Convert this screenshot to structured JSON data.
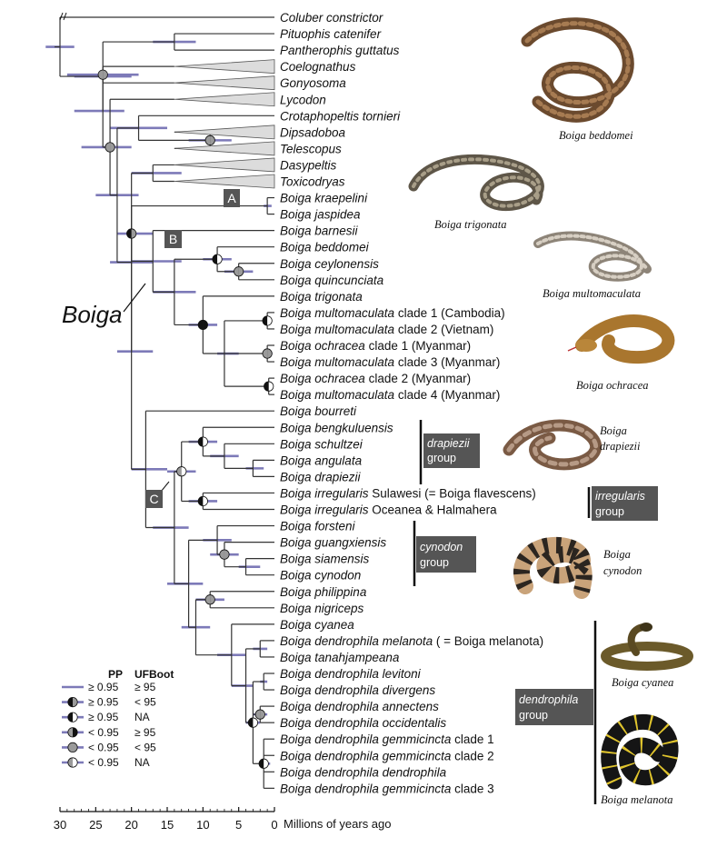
{
  "taxa": [
    {
      "genus": "Coluber",
      "rest": " constrictor",
      "plain": ""
    },
    {
      "genus": "Pituophis",
      "rest": " catenifer",
      "plain": ""
    },
    {
      "genus": "Pantherophis",
      "rest": " guttatus",
      "plain": ""
    },
    {
      "genus": "Coelognathus",
      "rest": "",
      "plain": ""
    },
    {
      "genus": "Gonyosoma",
      "rest": "",
      "plain": ""
    },
    {
      "genus": "Lycodon",
      "rest": "",
      "plain": ""
    },
    {
      "genus": "Crotaphopeltis",
      "rest": " tornieri",
      "plain": ""
    },
    {
      "genus": "Dipsadoboa",
      "rest": "",
      "plain": ""
    },
    {
      "genus": "Telescopus",
      "rest": "",
      "plain": ""
    },
    {
      "genus": "Dasypeltis",
      "rest": "",
      "plain": ""
    },
    {
      "genus": "Toxicodryas",
      "rest": "",
      "plain": ""
    },
    {
      "genus": "Boiga",
      "rest": " kraepelini",
      "plain": ""
    },
    {
      "genus": "Boiga",
      "rest": " jaspidea",
      "plain": ""
    },
    {
      "genus": "Boiga",
      "rest": " barnesii",
      "plain": ""
    },
    {
      "genus": "Boiga",
      "rest": " beddomei",
      "plain": ""
    },
    {
      "genus": "Boiga",
      "rest": " ceylonensis",
      "plain": ""
    },
    {
      "genus": "Boiga",
      "rest": " quincunciata",
      "plain": ""
    },
    {
      "genus": "Boiga",
      "rest": " trigonata",
      "plain": ""
    },
    {
      "genus": "Boiga",
      "rest": " multomaculata",
      "plain": " clade 1 (Cambodia)"
    },
    {
      "genus": "Boiga",
      "rest": " multomaculata",
      "plain": " clade 2 (Vietnam)"
    },
    {
      "genus": "Boiga",
      "rest": " ochracea",
      "plain": " clade 1 (Myanmar)"
    },
    {
      "genus": "Boiga",
      "rest": " multomaculata",
      "plain": " clade 3 (Myanmar)"
    },
    {
      "genus": "Boiga",
      "rest": " ochracea",
      "plain": " clade 2 (Myanmar)"
    },
    {
      "genus": "Boiga",
      "rest": " multomaculata",
      "plain": " clade 4 (Myanmar)"
    },
    {
      "genus": "Boiga",
      "rest": " bourreti",
      "plain": ""
    },
    {
      "genus": "Boiga",
      "rest": " bengkuluensis",
      "plain": ""
    },
    {
      "genus": "Boiga",
      "rest": " schultzei",
      "plain": ""
    },
    {
      "genus": "Boiga",
      "rest": " angulata",
      "plain": ""
    },
    {
      "genus": "Boiga",
      "rest": " drapiezii",
      "plain": ""
    },
    {
      "genus": "Boiga",
      "rest": " irregularis",
      "plain": " Sulawesi (= Boiga flavescens)"
    },
    {
      "genus": "Boiga",
      "rest": " irregularis",
      "plain": " Oceanea & Halmahera"
    },
    {
      "genus": "Boiga",
      "rest": " forsteni",
      "plain": ""
    },
    {
      "genus": "Boiga",
      "rest": " guangxiensis",
      "plain": ""
    },
    {
      "genus": "Boiga",
      "rest": " siamensis",
      "plain": ""
    },
    {
      "genus": "Boiga",
      "rest": " cynodon",
      "plain": ""
    },
    {
      "genus": "Boiga",
      "rest": " philippina",
      "plain": ""
    },
    {
      "genus": "Boiga",
      "rest": " nigriceps",
      "plain": ""
    },
    {
      "genus": "Boiga",
      "rest": " cyanea",
      "plain": ""
    },
    {
      "genus": "Boiga",
      "rest": " dendrophila melanota",
      "plain": " ( = Boiga melanota)"
    },
    {
      "genus": "Boiga",
      "rest": " tanahjampeana",
      "plain": ""
    },
    {
      "genus": "Boiga",
      "rest": " dendrophila levitoni",
      "plain": ""
    },
    {
      "genus": "Boiga",
      "rest": " dendrophila divergens",
      "plain": ""
    },
    {
      "genus": "Boiga",
      "rest": " dendrophila annectens",
      "plain": ""
    },
    {
      "genus": "Boiga",
      "rest": " dendrophila occidentalis",
      "plain": ""
    },
    {
      "genus": "Boiga",
      "rest": " dendrophila gemmicincta",
      "plain": " clade 1"
    },
    {
      "genus": "Boiga",
      "rest": " dendrophila gemmicincta",
      "plain": " clade 2"
    },
    {
      "genus": "Boiga",
      "rest": " dendrophila dendrophila",
      "plain": ""
    },
    {
      "genus": "Boiga",
      "rest": " dendrophila gemmicincta",
      "plain": " clade 3"
    }
  ],
  "clade_label": "Boiga",
  "node_labels": [
    "A",
    "B",
    "C"
  ],
  "groups": [
    {
      "line1": "drapiezii",
      "line2": "group"
    },
    {
      "line1": "irregularis",
      "line2": "group"
    },
    {
      "line1": "cynodon",
      "line2": "group"
    },
    {
      "line1": "dendrophila",
      "line2": "group"
    }
  ],
  "photo_captions": [
    {
      "line1": "Boiga beddomei",
      "line2": ""
    },
    {
      "line1": "Boiga trigonata",
      "line2": ""
    },
    {
      "line1": "Boiga multomaculata",
      "line2": ""
    },
    {
      "line1": "Boiga ochracea",
      "line2": ""
    },
    {
      "line1": "Boiga",
      "line2": "drapiezii"
    },
    {
      "line1": "Boiga",
      "line2": "cynodon"
    },
    {
      "line1": "Boiga cyanea",
      "line2": ""
    },
    {
      "line1": "Boiga melanota",
      "line2": ""
    }
  ],
  "legend": {
    "header_pp": "PP",
    "header_ufboot": "UFBoot",
    "rows": [
      {
        "pp": "≥ 0.95",
        "uf": "≥ 95",
        "symbol": "line"
      },
      {
        "pp": "≥ 0.95",
        "uf": "< 95",
        "symbol": "black-left-grey-right"
      },
      {
        "pp": "≥ 0.95",
        "uf": "NA",
        "symbol": "black-left-white-right"
      },
      {
        "pp": "< 0.95",
        "uf": "≥ 95",
        "symbol": "grey-left-black-right"
      },
      {
        "pp": "< 0.95",
        "uf": "< 95",
        "symbol": "grey"
      },
      {
        "pp": "< 0.95",
        "uf": "NA",
        "symbol": "grey-left-white-right"
      }
    ]
  },
  "axis": {
    "ticks": [
      "30",
      "25",
      "20",
      "15",
      "10",
      "5",
      "0"
    ],
    "label": "Millions of years ago"
  },
  "colors": {
    "hpd_bar": "#7d7ab8",
    "branch": "#333333",
    "node_grey": "#9a9a9a",
    "group_box": "#555555",
    "triangle_fill": "#dcdcdc"
  }
}
